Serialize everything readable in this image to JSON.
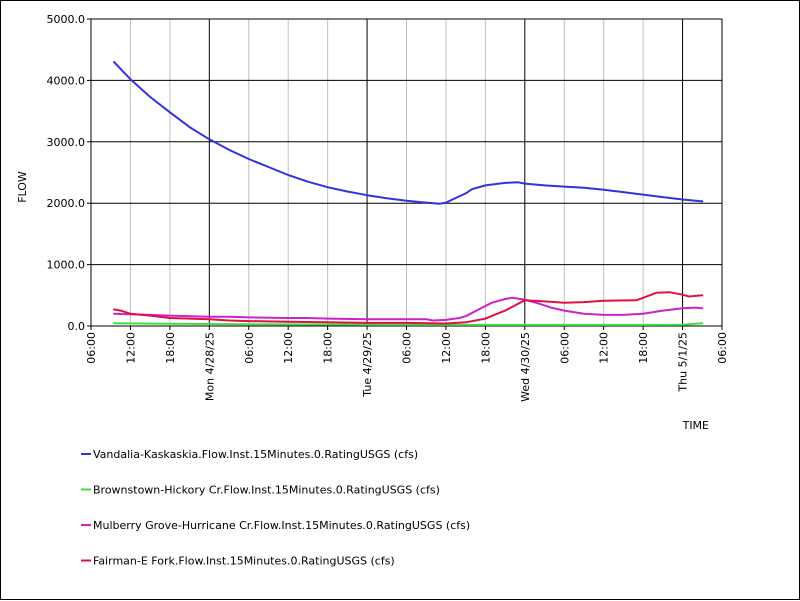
{
  "chart_data": {
    "type": "line",
    "xlabel": "TIME",
    "ylabel": "FLOW",
    "ylim": [
      0,
      5000
    ],
    "xlim": [
      "2025-04-27 06:00",
      "2025-05-01 06:00"
    ],
    "grid": true,
    "legend_position": "bottom",
    "y_ticks": [
      {
        "value": 0,
        "label": "0.0"
      },
      {
        "value": 1000,
        "label": "1000.0"
      },
      {
        "value": 2000,
        "label": "2000.0"
      },
      {
        "value": 3000,
        "label": "3000.0"
      },
      {
        "value": 4000,
        "label": "4000.0"
      },
      {
        "value": 5000,
        "label": "5000.0"
      }
    ],
    "x_ticks": [
      {
        "hours": 0,
        "label": "06:00",
        "major": false
      },
      {
        "hours": 6,
        "label": "12:00",
        "major": false
      },
      {
        "hours": 12,
        "label": "18:00",
        "major": false
      },
      {
        "hours": 18,
        "label": "Mon 4/28/25",
        "major": true
      },
      {
        "hours": 24,
        "label": "06:00",
        "major": false
      },
      {
        "hours": 30,
        "label": "12:00",
        "major": false
      },
      {
        "hours": 36,
        "label": "18:00",
        "major": false
      },
      {
        "hours": 42,
        "label": "Tue 4/29/25",
        "major": true
      },
      {
        "hours": 48,
        "label": "06:00",
        "major": false
      },
      {
        "hours": 54,
        "label": "12:00",
        "major": false
      },
      {
        "hours": 60,
        "label": "18:00",
        "major": false
      },
      {
        "hours": 66,
        "label": "Wed 4/30/25",
        "major": true
      },
      {
        "hours": 72,
        "label": "06:00",
        "major": false
      },
      {
        "hours": 78,
        "label": "12:00",
        "major": false
      },
      {
        "hours": 84,
        "label": "18:00",
        "major": false
      },
      {
        "hours": 90,
        "label": "Thu 5/1/25",
        "major": true
      },
      {
        "hours": 96,
        "label": "06:00",
        "major": false
      }
    ],
    "series": [
      {
        "name": "Vandalia-Kaskaskia.Flow.Inst.15Minutes.0.RatingUSGS (cfs)",
        "color": "#3333dd",
        "x": [
          "2025-04-27 09:30",
          "2025-04-27 12:00",
          "2025-04-27 15:00",
          "2025-04-27 18:00",
          "2025-04-27 21:00",
          "2025-04-28 00:00",
          "2025-04-28 03:00",
          "2025-04-28 06:00",
          "2025-04-28 09:00",
          "2025-04-28 12:00",
          "2025-04-28 15:00",
          "2025-04-28 18:00",
          "2025-04-28 21:00",
          "2025-04-29 00:00",
          "2025-04-29 03:00",
          "2025-04-29 06:00",
          "2025-04-29 09:00",
          "2025-04-29 11:00",
          "2025-04-29 12:00",
          "2025-04-29 13:00",
          "2025-04-29 15:00",
          "2025-04-29 16:00",
          "2025-04-29 18:00",
          "2025-04-29 21:00",
          "2025-04-29 23:00",
          "2025-04-30 00:00",
          "2025-04-30 03:00",
          "2025-04-30 06:00",
          "2025-04-30 09:00",
          "2025-04-30 12:00",
          "2025-04-30 15:00",
          "2025-04-30 18:00",
          "2025-04-30 21:00",
          "2025-05-01 00:00",
          "2025-05-01 03:00"
        ],
        "values": [
          4300,
          4020,
          3730,
          3480,
          3240,
          3040,
          2870,
          2720,
          2590,
          2460,
          2350,
          2260,
          2190,
          2130,
          2080,
          2040,
          2010,
          1990,
          2010,
          2060,
          2160,
          2230,
          2290,
          2330,
          2340,
          2320,
          2290,
          2270,
          2250,
          2220,
          2180,
          2140,
          2100,
          2060,
          2030
        ]
      },
      {
        "name": "Brownstown-Hickory Cr.Flow.Inst.15Minutes.0.RatingUSGS (cfs)",
        "color": "#44dd44",
        "x": [
          "2025-04-27 09:30",
          "2025-04-27 18:00",
          "2025-04-28 06:00",
          "2025-04-28 18:00",
          "2025-04-29 06:00",
          "2025-04-29 18:00",
          "2025-04-30 06:00",
          "2025-04-30 18:00",
          "2025-05-01 00:00",
          "2025-05-01 03:00"
        ],
        "values": [
          45,
          38,
          30,
          25,
          20,
          18,
          18,
          18,
          20,
          45
        ]
      },
      {
        "name": "Mulberry Grove-Hurricane Cr.Flow.Inst.15Minutes.0.RatingUSGS (cfs)",
        "color": "#cc22cc",
        "x": [
          "2025-04-27 09:30",
          "2025-04-27 12:00",
          "2025-04-27 18:00",
          "2025-04-28 00:00",
          "2025-04-28 03:00",
          "2025-04-28 06:00",
          "2025-04-28 12:00",
          "2025-04-28 15:00",
          "2025-04-28 18:00",
          "2025-04-29 00:00",
          "2025-04-29 06:00",
          "2025-04-29 09:00",
          "2025-04-29 10:00",
          "2025-04-29 12:00",
          "2025-04-29 14:00",
          "2025-04-29 15:00",
          "2025-04-29 17:00",
          "2025-04-29 19:00",
          "2025-04-29 21:00",
          "2025-04-29 22:00",
          "2025-04-30 00:00",
          "2025-04-30 02:00",
          "2025-04-30 04:00",
          "2025-04-30 06:00",
          "2025-04-30 09:00",
          "2025-04-30 12:00",
          "2025-04-30 15:00",
          "2025-04-30 18:00",
          "2025-04-30 21:00",
          "2025-05-01 00:00",
          "2025-05-01 02:00",
          "2025-05-01 03:00"
        ],
        "values": [
          200,
          190,
          170,
          150,
          150,
          140,
          130,
          130,
          120,
          110,
          110,
          110,
          90,
          100,
          130,
          160,
          270,
          380,
          440,
          460,
          430,
          370,
          300,
          250,
          200,
          180,
          180,
          200,
          250,
          290,
          300,
          290
        ]
      },
      {
        "name": "Fairman-E Fork.Flow.Inst.15Minutes.0.RatingUSGS (cfs)",
        "color": "#dd1144",
        "x": [
          "2025-04-27 09:30",
          "2025-04-27 10:30",
          "2025-04-27 12:00",
          "2025-04-27 15:00",
          "2025-04-27 18:00",
          "2025-04-28 00:00",
          "2025-04-28 03:00",
          "2025-04-28 06:00",
          "2025-04-28 12:00",
          "2025-04-28 18:00",
          "2025-04-29 00:00",
          "2025-04-29 06:00",
          "2025-04-29 12:00",
          "2025-04-29 15:00",
          "2025-04-29 18:00",
          "2025-04-29 21:00",
          "2025-04-30 00:00",
          "2025-04-30 03:00",
          "2025-04-30 06:00",
          "2025-04-30 09:00",
          "2025-04-30 12:00",
          "2025-04-30 17:00",
          "2025-04-30 18:00",
          "2025-04-30 20:00",
          "2025-04-30 22:00",
          "2025-05-01 00:00",
          "2025-05-01 01:00",
          "2025-05-01 02:00",
          "2025-05-01 03:00"
        ],
        "values": [
          270,
          250,
          200,
          170,
          130,
          110,
          90,
          80,
          70,
          60,
          50,
          50,
          40,
          60,
          120,
          250,
          420,
          400,
          380,
          390,
          410,
          420,
          460,
          540,
          550,
          510,
          480,
          490,
          500
        ]
      }
    ]
  }
}
